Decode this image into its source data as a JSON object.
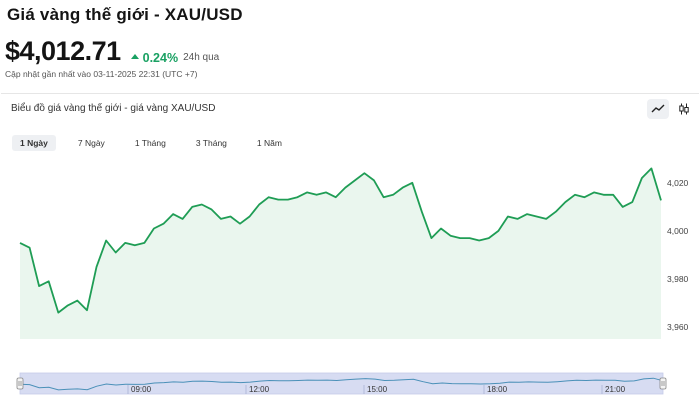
{
  "header": {
    "title": "Giá vàng thế giới - XAU/USD",
    "price": "$4,012.71",
    "change": "0.24%",
    "period": "24h qua",
    "updated": "Cập nhật gần nhất vào 03-11-2025 22:31 (UTC +7)"
  },
  "chart_panel": {
    "title": "Biểu đồ giá vàng thế giới - giá vàng XAU/USD",
    "tools": [
      "line-chart-icon",
      "candlestick-icon"
    ],
    "tabs": [
      {
        "label": "1 Ngày",
        "active": true
      },
      {
        "label": "7 Ngày",
        "active": false
      },
      {
        "label": "1 Tháng",
        "active": false
      },
      {
        "label": "3 Tháng",
        "active": false
      },
      {
        "label": "1 Năm",
        "active": false
      }
    ]
  },
  "colors": {
    "line": "#1f9d55",
    "fill": "#eaf6ee",
    "navigator_fill": "#d7dcf2",
    "navigator_line": "#4a90b8"
  },
  "chart_data": {
    "type": "area",
    "title": "",
    "xlabel": "",
    "ylabel": "",
    "ylim": [
      3955,
      4032
    ],
    "yticks": [
      3960,
      3980,
      4000,
      4020
    ],
    "ytick_labels": [
      "3,960",
      "3,980",
      "4,000",
      "4,020"
    ],
    "series": [
      {
        "values": [
          3995,
          3993,
          3977,
          3979,
          3966,
          3969,
          3971,
          3967,
          3985,
          3996,
          3991,
          3995,
          3994,
          3995,
          4001,
          4003,
          4007,
          4005,
          4010,
          4011,
          4009,
          4005,
          4006,
          4003,
          4006,
          4011,
          4014,
          4013,
          4013,
          4014,
          4016,
          4015,
          4016,
          4014,
          4018,
          4021,
          4024,
          4021,
          4014,
          4015,
          4018,
          4020,
          4008,
          3997,
          4001,
          3998,
          3997,
          3997,
          3996,
          3997,
          4000,
          4006,
          4005,
          4007,
          4006,
          4005,
          4008,
          4012,
          4015,
          4014,
          4016,
          4015,
          4015,
          4010,
          4012,
          4022,
          4026,
          4012.7
        ]
      }
    ],
    "navigator": {
      "x_labels": [
        "09:00",
        "12:00",
        "15:00",
        "18:00",
        "21:00"
      ]
    }
  }
}
